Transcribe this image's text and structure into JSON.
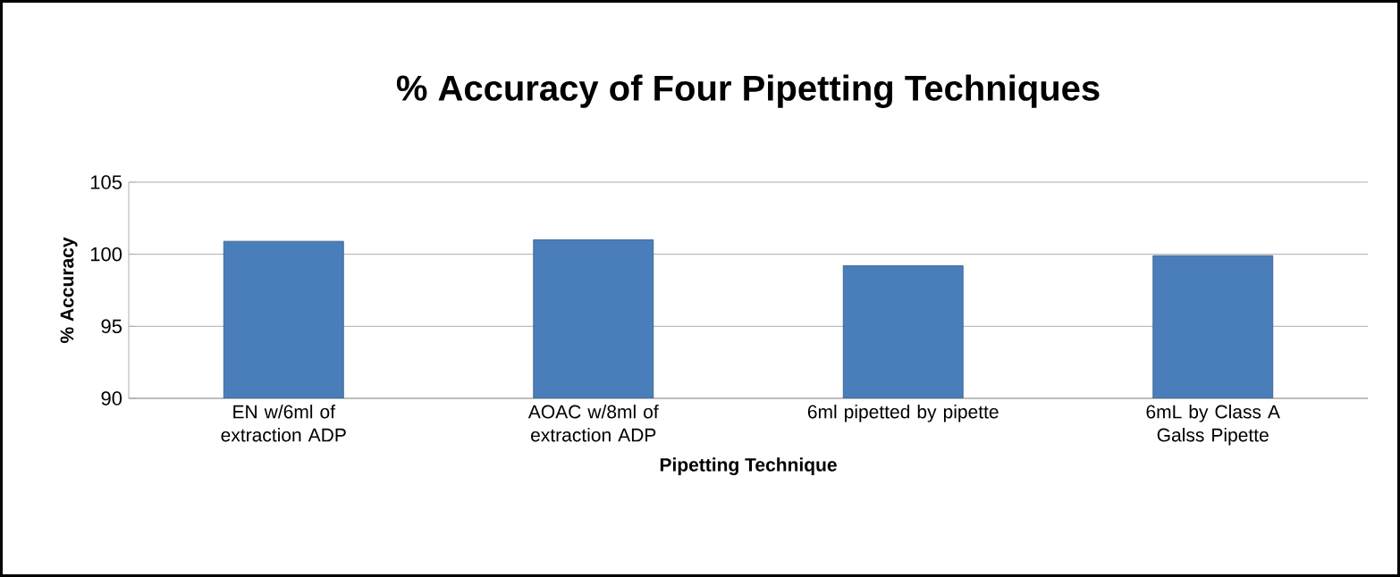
{
  "chart_data": {
    "type": "bar",
    "title": "% Accuracy of  Four Pipetting Techniques",
    "xlabel": "Pipetting Technique",
    "ylabel": "% Accuracy",
    "categories": [
      "EN w/6ml of extraction ADP",
      "AOAC w/8ml of extraction ADP",
      "6ml pipetted by pipette",
      "6mL by Class A Galss Pipette"
    ],
    "values": [
      100.9,
      101.0,
      99.2,
      99.9
    ],
    "color": "#4a7ebb",
    "ylim": [
      90,
      105
    ],
    "yticks": [
      90,
      95,
      100,
      105
    ],
    "grid": "y"
  }
}
